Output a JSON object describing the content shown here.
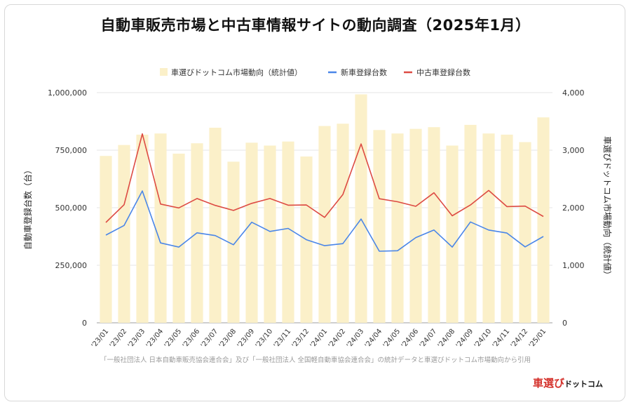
{
  "title": "自動車販売市場と中古車情報サイトの動向調査（2025年1月）",
  "source": "「一般社団法人 日本自動車販売協会連合会」及び「一般社団法人 全国軽自動車協会連合会」の統計データと車選びドットコム市場動向から引用",
  "logo": {
    "red": "車選び",
    "rest": "ドットコム"
  },
  "colors": {
    "bar": "#fbf0c9",
    "new": "#4a86e8",
    "used": "#dd4b43",
    "grid": "#e6e6e6"
  },
  "chart_data": {
    "type": "bar",
    "categories": [
      "'23/01",
      "'23/02",
      "'23/03",
      "'23/04",
      "'23/05",
      "'23/06",
      "'23/07",
      "'23/08",
      "'23/09",
      "'23/10",
      "'23/11",
      "'23/12",
      "'24/01",
      "'24/02",
      "'24/03",
      "'24/04",
      "'24/05",
      "'24/06",
      "'24/07",
      "'24/08",
      "'24/09",
      "'24/10",
      "'24/11",
      "'24/12",
      "'25/01"
    ],
    "ylabel": "自動車登録台数（台）",
    "y2label": "車選びドットコム市場動向（統計値）",
    "ylim": [
      0,
      1000000
    ],
    "y2lim": [
      0,
      4000
    ],
    "yticks": [
      "0",
      "250,000",
      "500,000",
      "750,000",
      "1,000,000"
    ],
    "y2ticks": [
      "0",
      "1,000",
      "2,000",
      "3,000",
      "4,000"
    ],
    "legend_position": "top",
    "series": [
      {
        "name": "車選びドットコム市場動向（統計値）",
        "type": "bar",
        "axis": "right",
        "values": [
          2900,
          3090,
          3270,
          3290,
          2940,
          3120,
          3390,
          2800,
          3130,
          3080,
          3150,
          2890,
          3420,
          3460,
          3970,
          3350,
          3290,
          3370,
          3400,
          3080,
          3440,
          3290,
          3270,
          3140,
          3570
        ]
      },
      {
        "name": "新車登録台数",
        "type": "line",
        "axis": "left",
        "values": [
          381000,
          423000,
          573000,
          347000,
          329000,
          391000,
          379000,
          339000,
          437000,
          397000,
          410000,
          361000,
          335000,
          344000,
          451000,
          311000,
          313000,
          370000,
          403000,
          329000,
          438000,
          403000,
          390000,
          330000,
          375000
        ]
      },
      {
        "name": "中古車登録台数",
        "type": "line",
        "axis": "left",
        "values": [
          436000,
          513000,
          821000,
          516000,
          499000,
          540000,
          510000,
          488000,
          519000,
          540000,
          511000,
          512000,
          458000,
          557000,
          777000,
          539000,
          526000,
          506000,
          565000,
          465000,
          512000,
          575000,
          505000,
          507000,
          462000
        ]
      }
    ]
  }
}
